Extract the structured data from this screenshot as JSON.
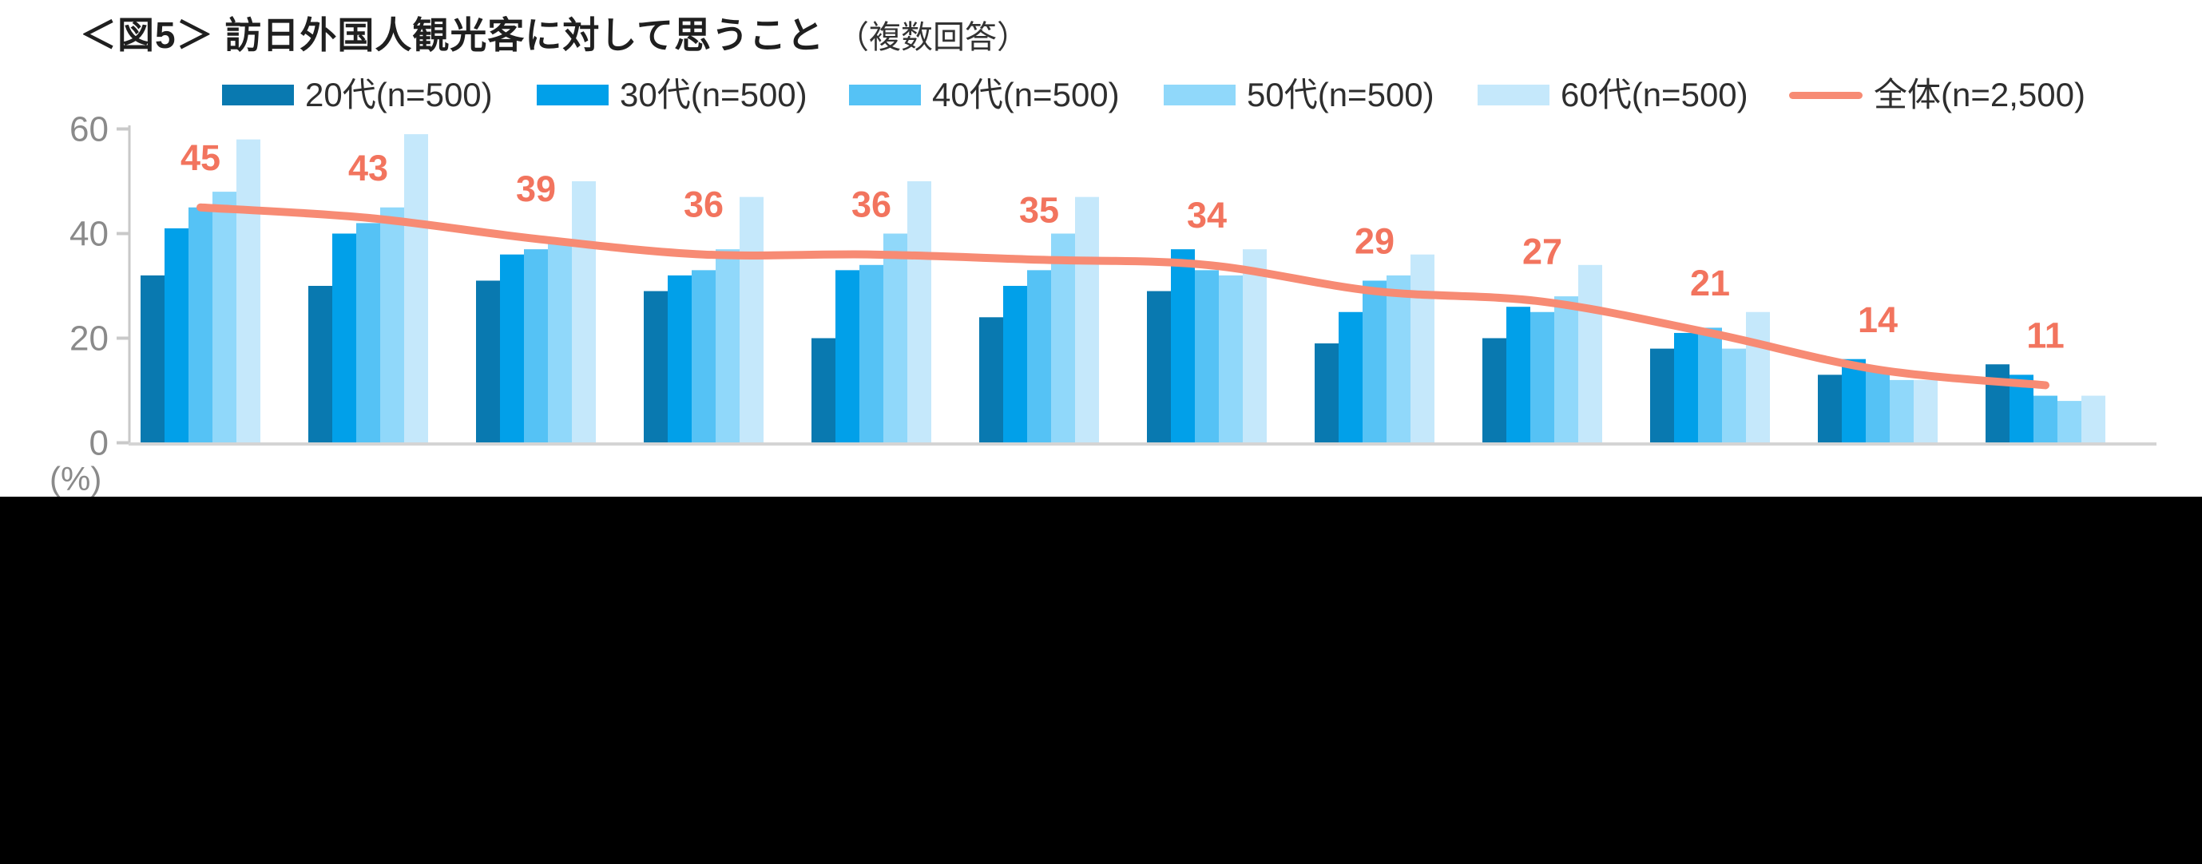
{
  "title": {
    "main": "＜図5＞ 訪日外国人観光客に対して思うこと",
    "note": "（複数回答）"
  },
  "axis": {
    "unit_label": "(%)",
    "yticks": [
      0,
      20,
      40,
      60
    ],
    "ymax": 60
  },
  "theme": {
    "background": "#ffffff",
    "bottom_region": "#000000",
    "title_text": "#1f1f1f",
    "legend_text": "#2e2e2e",
    "axis_text": "#8a8a8a",
    "axis_line": "#c9c9c9",
    "baseline": "#d4d4d4",
    "data_label": "#f2745e"
  },
  "chart_data": {
    "type": "bar+line",
    "group_count": 12,
    "ylim": [
      0,
      60
    ],
    "grid": false,
    "legend_position": "top",
    "series": [
      {
        "name": "20代(n=500)",
        "color": "#0979b0",
        "values": [
          32,
          30,
          31,
          29,
          20,
          24,
          29,
          19,
          20,
          18,
          13,
          15
        ]
      },
      {
        "name": "30代(n=500)",
        "color": "#01a0e9",
        "values": [
          41,
          40,
          36,
          32,
          33,
          30,
          37,
          25,
          26,
          21,
          16,
          13
        ]
      },
      {
        "name": "40代(n=500)",
        "color": "#55c2f5",
        "values": [
          45,
          42,
          37,
          33,
          34,
          33,
          33,
          31,
          25,
          22,
          14,
          9
        ]
      },
      {
        "name": "50代(n=500)",
        "color": "#90d8fa",
        "values": [
          48,
          45,
          39,
          37,
          40,
          40,
          32,
          32,
          28,
          18,
          12,
          8
        ]
      },
      {
        "name": "60代(n=500)",
        "color": "#c5e8fb",
        "values": [
          58,
          59,
          50,
          47,
          50,
          47,
          37,
          36,
          34,
          25,
          12,
          9
        ]
      }
    ],
    "line_series": {
      "name": "全体(n=2,500)",
      "color": "#f78b74",
      "values": [
        45,
        43,
        39,
        36,
        36,
        35,
        34,
        29,
        27,
        21,
        14,
        11
      ]
    }
  }
}
